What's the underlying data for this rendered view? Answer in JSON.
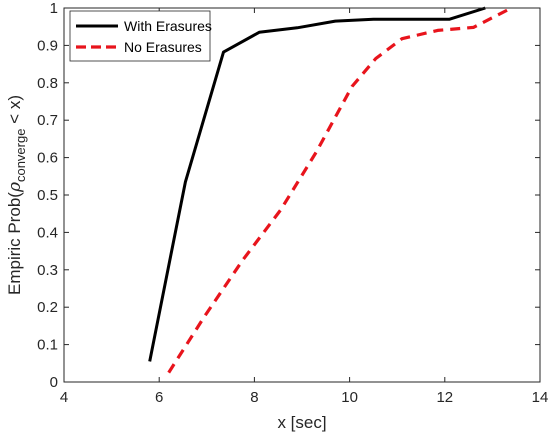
{
  "chart_data": {
    "type": "line",
    "xlabel": "x [sec]",
    "ylabel": {
      "prefix": "Empiric Prob(",
      "symbol": "ρ",
      "subscript": "converge",
      "suffix": " < x)"
    },
    "xlim": [
      4,
      14
    ],
    "ylim": [
      0,
      1
    ],
    "xticks": [
      4,
      6,
      8,
      10,
      12,
      14
    ],
    "yticks": [
      0,
      0.1,
      0.2,
      0.3,
      0.4,
      0.5,
      0.6,
      0.7,
      0.8,
      0.9,
      1
    ],
    "grid": false,
    "legend_position": "top-left",
    "series": [
      {
        "name": "With Erasures",
        "color": "#000000",
        "style": "solid",
        "x": [
          5.8,
          6.55,
          7.35,
          8.1,
          8.9,
          9.7,
          10.5,
          11.3,
          12.1,
          12.85
        ],
        "y": [
          0.055,
          0.535,
          0.882,
          0.935,
          0.947,
          0.965,
          0.97,
          0.97,
          0.97,
          1.0
        ]
      },
      {
        "name": "No Erasures",
        "color": "#e8141c",
        "style": "dashed",
        "x": [
          6.2,
          6.95,
          7.75,
          8.55,
          9.3,
          10.05,
          10.55,
          11.1,
          11.85,
          12.6,
          13.4
        ],
        "y": [
          0.025,
          0.175,
          0.325,
          0.46,
          0.615,
          0.79,
          0.865,
          0.918,
          0.94,
          0.948,
          1.0
        ]
      }
    ]
  }
}
